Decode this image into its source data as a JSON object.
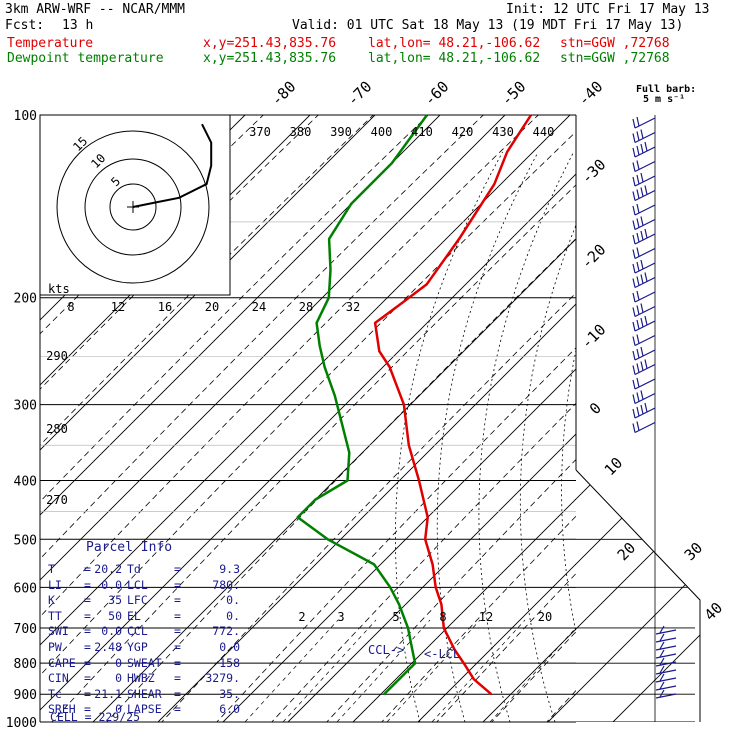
{
  "header": {
    "model": "3km ARW-WRF -- NCAR/MMM",
    "init": "Init: 12 UTC Fri 17 May 13",
    "fcst_label": "Fcst:",
    "fcst_value": "13 h",
    "valid": "Valid: 01 UTC Sat 18 May 13 (19 MDT Fri 17 May 13)",
    "temp_legend": {
      "name": "Temperature",
      "xy": "x,y=251.43,835.76",
      "latlon": "lat,lon= 48.21,-106.62",
      "stn": "stn=GGW ,72768"
    },
    "dewp_legend": {
      "name": "Dewpoint temperature",
      "xy": "x,y=251.43,835.76",
      "latlon": "lat,lon= 48.21,-106.62",
      "stn": "stn=GGW ,72768"
    }
  },
  "colors": {
    "temperature": "#e00000",
    "dewpoint": "#008000",
    "text_index": "#1a1a8c",
    "grid": "#000000"
  },
  "barb_scale": {
    "title": "Full barb:",
    "value": "5 m s⁻¹"
  },
  "pressure_labels": [
    "100",
    "200",
    "300",
    "400",
    "500",
    "600",
    "700",
    "800",
    "900",
    "1000"
  ],
  "isotherm_labels": [
    "-80",
    "-70",
    "-60",
    "-50",
    "-40",
    "-30",
    "-20",
    "-10",
    "0",
    "10",
    "20",
    "30",
    "40"
  ],
  "theta_labels": [
    "370",
    "380",
    "390",
    "400",
    "410",
    "420",
    "430",
    "440"
  ],
  "dry_adiabat_side_labels": [
    "290",
    "280",
    "270"
  ],
  "mixing_ratio_labels": [
    "2",
    "3",
    "5",
    "8",
    "12",
    "20"
  ],
  "hodograph": {
    "unit": "kts",
    "speed_labels": [
      "8",
      "12",
      "16",
      "20",
      "24",
      "28",
      "32"
    ],
    "ring_labels": [
      "15",
      "10",
      "5"
    ]
  },
  "annotations": {
    "ccl": "CCL->",
    "lcl": "<-LCL"
  },
  "parcel_info": {
    "title": "Parcel Info",
    "rows": [
      [
        "T",
        "=",
        "20.2",
        "Td",
        "=",
        "9.3"
      ],
      [
        "LI",
        "=",
        "0.0",
        "LCL",
        "=",
        "780."
      ],
      [
        "K",
        "=",
        "35",
        "LFC",
        "=",
        "0."
      ],
      [
        "TT",
        "=",
        "50",
        "EL",
        "=",
        "0."
      ],
      [
        "SWI",
        "=",
        "0.0",
        "CCL",
        "=",
        "772."
      ],
      [
        "PW",
        "=",
        "2.48",
        "YGP",
        "=",
        "0.0"
      ],
      [
        "CAPE",
        "=",
        "0",
        "SWEAT",
        "=",
        "158"
      ],
      [
        "CIN",
        "=",
        "0",
        "HWBZ",
        "=",
        "3279."
      ],
      [
        "Tc",
        "=",
        "21.1",
        "SHEAR",
        "=",
        "35."
      ],
      [
        "SREH",
        "=",
        "0",
        "LAPSE",
        "=",
        "6.0"
      ]
    ],
    "cell": "CELL = 229/25"
  },
  "chart_data": {
    "type": "line",
    "diagram": "skew-T log-p",
    "y_axis": {
      "quantity": "pressure",
      "units": "hPa",
      "scale": "log",
      "range": [
        1000,
        100
      ],
      "ticks": [
        100,
        200,
        300,
        400,
        500,
        600,
        700,
        800,
        900,
        1000
      ]
    },
    "series": [
      {
        "name": "Temperature",
        "points": [
          {
            "p": 900,
            "t": 17.0
          },
          {
            "p": 850,
            "t": 12.0
          },
          {
            "p": 800,
            "t": 8.0
          },
          {
            "p": 760,
            "t": 4.5
          },
          {
            "p": 700,
            "t": -0.5
          },
          {
            "p": 640,
            "t": -4.5
          },
          {
            "p": 600,
            "t": -8.0
          },
          {
            "p": 550,
            "t": -12.0
          },
          {
            "p": 500,
            "t": -17.0
          },
          {
            "p": 460,
            "t": -20.0
          },
          {
            "p": 400,
            "t": -27.0
          },
          {
            "p": 350,
            "t": -34.0
          },
          {
            "p": 300,
            "t": -41.0
          },
          {
            "p": 260,
            "t": -49.0
          },
          {
            "p": 245,
            "t": -53.0
          },
          {
            "p": 220,
            "t": -58.0
          },
          {
            "p": 205,
            "t": -57.0
          },
          {
            "p": 190,
            "t": -56.0
          },
          {
            "p": 160,
            "t": -58.0
          },
          {
            "p": 130,
            "t": -61.0
          },
          {
            "p": 115,
            "t": -64.0
          },
          {
            "p": 100,
            "t": -66.0
          }
        ]
      },
      {
        "name": "Dewpoint temperature",
        "points": [
          {
            "p": 900,
            "t": 0.5
          },
          {
            "p": 850,
            "t": 0.5
          },
          {
            "p": 800,
            "t": 0.5
          },
          {
            "p": 760,
            "t": -2.0
          },
          {
            "p": 700,
            "t": -6.0
          },
          {
            "p": 640,
            "t": -11.0
          },
          {
            "p": 600,
            "t": -15.0
          },
          {
            "p": 550,
            "t": -21.0
          },
          {
            "p": 500,
            "t": -32.0
          },
          {
            "p": 460,
            "t": -40.0
          },
          {
            "p": 430,
            "t": -40.0
          },
          {
            "p": 400,
            "t": -38.0
          },
          {
            "p": 360,
            "t": -42.0
          },
          {
            "p": 320,
            "t": -48.0
          },
          {
            "p": 290,
            "t": -53.0
          },
          {
            "p": 260,
            "t": -59.0
          },
          {
            "p": 240,
            "t": -63.0
          },
          {
            "p": 220,
            "t": -67.0
          },
          {
            "p": 200,
            "t": -69.0
          },
          {
            "p": 180,
            "t": -73.0
          },
          {
            "p": 160,
            "t": -78.0
          },
          {
            "p": 140,
            "t": -80.0
          },
          {
            "p": 120,
            "t": -80.0
          },
          {
            "p": 100,
            "t": -82.0
          }
        ]
      }
    ],
    "hodograph_trace_kts": [
      {
        "u": 0,
        "v": 0
      },
      {
        "u": 5,
        "v": 1
      },
      {
        "u": 10,
        "v": 2
      },
      {
        "u": 16,
        "v": 5
      },
      {
        "u": 17,
        "v": 9
      },
      {
        "u": 17,
        "v": 14
      },
      {
        "u": 15,
        "v": 18
      }
    ]
  }
}
